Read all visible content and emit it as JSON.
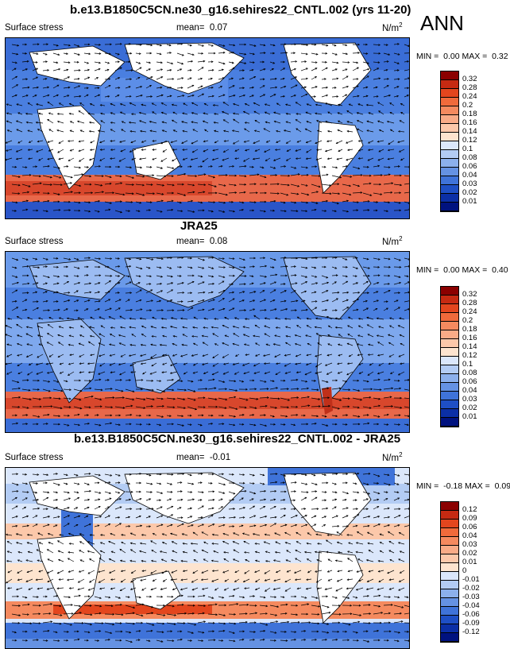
{
  "season": "ANN",
  "panels": [
    {
      "title": "b.e13.B1850C5CN.ne30_g16.sehires22_CNTL.002 (yrs 11-20)",
      "variable": "Surface stress",
      "mean_label": "mean=",
      "mean_value": "0.07",
      "units": "N/m",
      "units_sup": "2",
      "min_label": "MIN =",
      "min_value": "0.00",
      "max_label": "MAX =",
      "max_value": "0.32",
      "colorbar_labels": [
        "0.32",
        "0.28",
        "0.24",
        "0.2",
        "0.18",
        "0.16",
        "0.14",
        "0.12",
        "0.1",
        "0.08",
        "0.06",
        "0.04",
        "0.03",
        "0.02",
        "0.01"
      ],
      "colorbar_colors": [
        "#8b0000",
        "#c62a12",
        "#e3461e",
        "#f06a3b",
        "#f58a5f",
        "#f9ab87",
        "#fcc8aa",
        "#fde4cf",
        "#dbe7fb",
        "#b3ccf4",
        "#8cb0ec",
        "#6592e3",
        "#3f73d9",
        "#1e4fc5",
        "#0b2fa6",
        "#00127f"
      ]
    },
    {
      "title": "JRA25",
      "variable": "Surface stress",
      "mean_label": "mean=",
      "mean_value": "0.08",
      "units": "N/m",
      "units_sup": "2",
      "min_label": "MIN =",
      "min_value": "0.00",
      "max_label": "MAX =",
      "max_value": "0.40",
      "colorbar_labels": [
        "0.32",
        "0.28",
        "0.24",
        "0.2",
        "0.18",
        "0.16",
        "0.14",
        "0.12",
        "0.1",
        "0.08",
        "0.06",
        "0.04",
        "0.03",
        "0.02",
        "0.01"
      ],
      "colorbar_colors": [
        "#8b0000",
        "#c62a12",
        "#e3461e",
        "#f06a3b",
        "#f58a5f",
        "#f9ab87",
        "#fcc8aa",
        "#fde4cf",
        "#dbe7fb",
        "#b3ccf4",
        "#8cb0ec",
        "#6592e3",
        "#3f73d9",
        "#1e4fc5",
        "#0b2fa6",
        "#00127f"
      ]
    },
    {
      "title": "b.e13.B1850C5CN.ne30_g16.sehires22_CNTL.002 - JRA25",
      "variable": "Surface stress",
      "mean_label": "mean=",
      "mean_value": "-0.01",
      "units": "N/m",
      "units_sup": "2",
      "min_label": "MIN =",
      "min_value": "-0.18",
      "max_label": "MAX =",
      "max_value": "0.09",
      "colorbar_labels": [
        "0.12",
        "0.09",
        "0.06",
        "0.04",
        "0.03",
        "0.02",
        "0.01",
        "0",
        "-0.01",
        "-0.02",
        "-0.03",
        "-0.04",
        "-0.06",
        "-0.09",
        "-0.12"
      ],
      "colorbar_colors": [
        "#8b0000",
        "#c62a12",
        "#e3461e",
        "#f06a3b",
        "#f58a5f",
        "#f9ab87",
        "#fcc8aa",
        "#fde4cf",
        "#dbe7fb",
        "#b3ccf4",
        "#8cb0ec",
        "#6592e3",
        "#3f73d9",
        "#1e4fc5",
        "#0b2fa6",
        "#00127f"
      ]
    }
  ]
}
